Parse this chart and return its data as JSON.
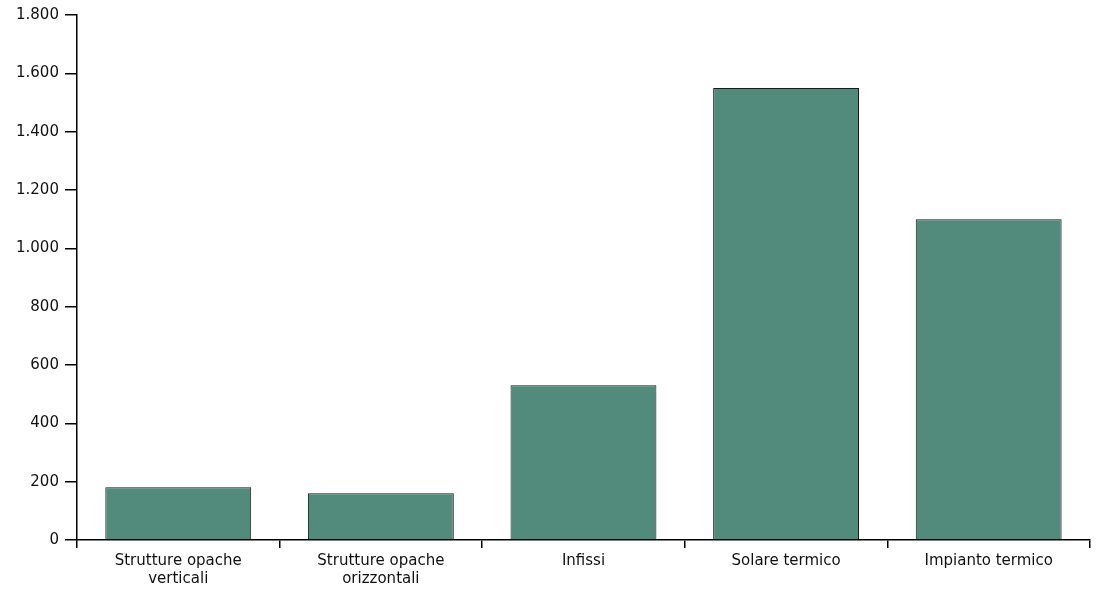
{
  "chart_data": {
    "type": "bar",
    "categories": [
      "Strutture opache verticali",
      "Strutture opache orizzontali",
      "Infissi",
      "Solare termico",
      "Impianto termico"
    ],
    "values": [
      181,
      160,
      531,
      1550,
      1100
    ],
    "color": "#528a7b",
    "ylim": [
      0,
      1800
    ],
    "yticks": [
      0,
      {
        "value": 200,
        "label": "200"
      },
      {
        "value": 400,
        "label": "400"
      },
      {
        "value": 600,
        "label": "600"
      },
      {
        "value": 800,
        "label": "800"
      },
      {
        "value": 1000,
        "label": "1.000"
      },
      {
        "value": 1200,
        "label": "1.200"
      },
      {
        "value": 1400,
        "label": "1.400"
      },
      {
        "value": 1600,
        "label": "1.600"
      },
      {
        "value": 1800,
        "label": "1.800"
      }
    ],
    "grid": false,
    "legend": false
  }
}
